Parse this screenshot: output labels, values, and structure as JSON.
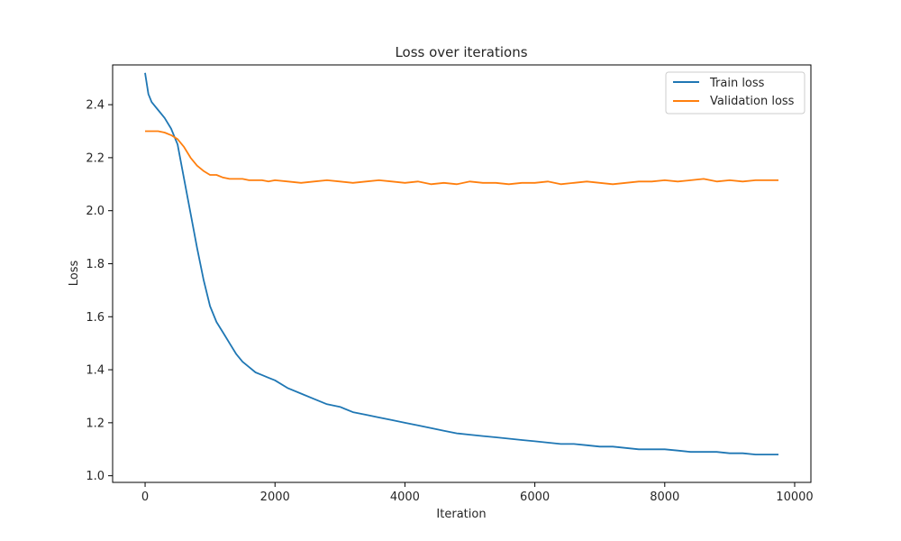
{
  "chart_data": {
    "type": "line",
    "title": "Loss over iterations",
    "xlabel": "Iteration",
    "ylabel": "Loss",
    "xlim": [
      -500,
      10250
    ],
    "ylim": [
      0.975,
      2.55
    ],
    "xticks": [
      0,
      2000,
      4000,
      6000,
      8000,
      10000
    ],
    "yticks": [
      1.0,
      1.2,
      1.4,
      1.6,
      1.8,
      2.0,
      2.2,
      2.4
    ],
    "xtick_labels": [
      "0",
      "2000",
      "4000",
      "6000",
      "8000",
      "10000"
    ],
    "ytick_labels": [
      "1.0",
      "1.2",
      "1.4",
      "1.6",
      "1.8",
      "2.0",
      "2.2",
      "2.4"
    ],
    "grid": false,
    "legend_position": "top-right",
    "series": [
      {
        "name": "Train loss",
        "color": "#1f77b4",
        "x": [
          0,
          50,
          100,
          200,
          300,
          400,
          500,
          600,
          700,
          800,
          900,
          1000,
          1100,
          1200,
          1300,
          1400,
          1500,
          1600,
          1700,
          1800,
          1900,
          2000,
          2200,
          2400,
          2600,
          2800,
          3000,
          3200,
          3400,
          3600,
          3800,
          4000,
          4200,
          4400,
          4600,
          4800,
          5000,
          5200,
          5400,
          5600,
          5800,
          6000,
          6200,
          6400,
          6600,
          6800,
          7000,
          7200,
          7400,
          7600,
          7800,
          8000,
          8200,
          8400,
          8600,
          8800,
          9000,
          9200,
          9400,
          9600,
          9750
        ],
        "y": [
          2.52,
          2.44,
          2.41,
          2.38,
          2.35,
          2.31,
          2.25,
          2.12,
          1.99,
          1.86,
          1.74,
          1.64,
          1.58,
          1.54,
          1.5,
          1.46,
          1.43,
          1.41,
          1.39,
          1.38,
          1.37,
          1.36,
          1.33,
          1.31,
          1.29,
          1.27,
          1.26,
          1.24,
          1.23,
          1.22,
          1.21,
          1.2,
          1.19,
          1.18,
          1.17,
          1.16,
          1.155,
          1.15,
          1.145,
          1.14,
          1.135,
          1.13,
          1.125,
          1.12,
          1.12,
          1.115,
          1.11,
          1.11,
          1.105,
          1.1,
          1.1,
          1.1,
          1.095,
          1.09,
          1.09,
          1.09,
          1.085,
          1.085,
          1.08,
          1.08,
          1.08
        ]
      },
      {
        "name": "Validation loss",
        "color": "#ff7f0e",
        "x": [
          0,
          100,
          200,
          300,
          400,
          500,
          600,
          700,
          800,
          900,
          1000,
          1100,
          1200,
          1300,
          1400,
          1500,
          1600,
          1700,
          1800,
          1900,
          2000,
          2200,
          2400,
          2600,
          2800,
          3000,
          3200,
          3400,
          3600,
          3800,
          4000,
          4200,
          4400,
          4600,
          4800,
          5000,
          5200,
          5400,
          5600,
          5800,
          6000,
          6200,
          6400,
          6600,
          6800,
          7000,
          7200,
          7400,
          7600,
          7800,
          8000,
          8200,
          8400,
          8600,
          8800,
          9000,
          9200,
          9400,
          9600,
          9750
        ],
        "y": [
          2.3,
          2.3,
          2.3,
          2.295,
          2.285,
          2.27,
          2.24,
          2.2,
          2.17,
          2.15,
          2.135,
          2.135,
          2.125,
          2.12,
          2.12,
          2.12,
          2.115,
          2.115,
          2.115,
          2.11,
          2.115,
          2.11,
          2.105,
          2.11,
          2.115,
          2.11,
          2.105,
          2.11,
          2.115,
          2.11,
          2.105,
          2.11,
          2.1,
          2.105,
          2.1,
          2.11,
          2.105,
          2.105,
          2.1,
          2.105,
          2.105,
          2.11,
          2.1,
          2.105,
          2.11,
          2.105,
          2.1,
          2.105,
          2.11,
          2.11,
          2.115,
          2.11,
          2.115,
          2.12,
          2.11,
          2.115,
          2.11,
          2.115,
          2.115,
          2.115
        ]
      }
    ]
  }
}
